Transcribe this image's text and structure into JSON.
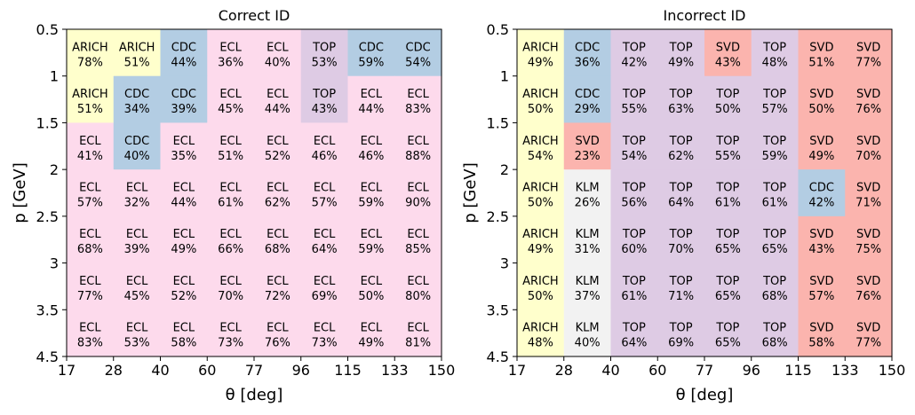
{
  "chart_data": [
    {
      "type": "heatmap",
      "title": "Correct ID",
      "xlabel": "θ [deg]",
      "ylabel": "p [GeV]",
      "x_edges": [
        "17",
        "28",
        "40",
        "60",
        "77",
        "96",
        "115",
        "133",
        "150"
      ],
      "y_edges": [
        "0.5",
        "1",
        "1.5",
        "2",
        "2.5",
        "3",
        "3.5",
        "4.5"
      ],
      "cells": [
        [
          [
            "ARICH",
            "78%"
          ],
          [
            "ARICH",
            "51%"
          ],
          [
            "CDC",
            "44%"
          ],
          [
            "ECL",
            "36%"
          ],
          [
            "ECL",
            "40%"
          ],
          [
            "TOP",
            "53%"
          ],
          [
            "CDC",
            "59%"
          ],
          [
            "CDC",
            "54%"
          ]
        ],
        [
          [
            "ARICH",
            "51%"
          ],
          [
            "CDC",
            "34%"
          ],
          [
            "CDC",
            "39%"
          ],
          [
            "ECL",
            "45%"
          ],
          [
            "ECL",
            "44%"
          ],
          [
            "TOP",
            "43%"
          ],
          [
            "ECL",
            "44%"
          ],
          [
            "ECL",
            "83%"
          ]
        ],
        [
          [
            "ECL",
            "41%"
          ],
          [
            "CDC",
            "40%"
          ],
          [
            "ECL",
            "35%"
          ],
          [
            "ECL",
            "51%"
          ],
          [
            "ECL",
            "52%"
          ],
          [
            "ECL",
            "46%"
          ],
          [
            "ECL",
            "46%"
          ],
          [
            "ECL",
            "88%"
          ]
        ],
        [
          [
            "ECL",
            "57%"
          ],
          [
            "ECL",
            "32%"
          ],
          [
            "ECL",
            "44%"
          ],
          [
            "ECL",
            "61%"
          ],
          [
            "ECL",
            "62%"
          ],
          [
            "ECL",
            "57%"
          ],
          [
            "ECL",
            "59%"
          ],
          [
            "ECL",
            "90%"
          ]
        ],
        [
          [
            "ECL",
            "68%"
          ],
          [
            "ECL",
            "39%"
          ],
          [
            "ECL",
            "49%"
          ],
          [
            "ECL",
            "66%"
          ],
          [
            "ECL",
            "68%"
          ],
          [
            "ECL",
            "64%"
          ],
          [
            "ECL",
            "59%"
          ],
          [
            "ECL",
            "85%"
          ]
        ],
        [
          [
            "ECL",
            "77%"
          ],
          [
            "ECL",
            "45%"
          ],
          [
            "ECL",
            "52%"
          ],
          [
            "ECL",
            "70%"
          ],
          [
            "ECL",
            "72%"
          ],
          [
            "ECL",
            "69%"
          ],
          [
            "ECL",
            "50%"
          ],
          [
            "ECL",
            "80%"
          ]
        ],
        [
          [
            "ECL",
            "83%"
          ],
          [
            "ECL",
            "53%"
          ],
          [
            "ECL",
            "58%"
          ],
          [
            "ECL",
            "73%"
          ],
          [
            "ECL",
            "76%"
          ],
          [
            "ECL",
            "73%"
          ],
          [
            "ECL",
            "49%"
          ],
          [
            "ECL",
            "81%"
          ]
        ]
      ]
    },
    {
      "type": "heatmap",
      "title": "Incorrect ID",
      "xlabel": "θ [deg]",
      "ylabel": "p [GeV]",
      "x_edges": [
        "17",
        "28",
        "40",
        "60",
        "77",
        "96",
        "115",
        "133",
        "150"
      ],
      "y_edges": [
        "0.5",
        "1",
        "1.5",
        "2",
        "2.5",
        "3",
        "3.5",
        "4.5"
      ],
      "cells": [
        [
          [
            "ARICH",
            "49%"
          ],
          [
            "CDC",
            "36%"
          ],
          [
            "TOP",
            "42%"
          ],
          [
            "TOP",
            "49%"
          ],
          [
            "SVD",
            "43%"
          ],
          [
            "TOP",
            "48%"
          ],
          [
            "SVD",
            "51%"
          ],
          [
            "SVD",
            "77%"
          ]
        ],
        [
          [
            "ARICH",
            "50%"
          ],
          [
            "CDC",
            "29%"
          ],
          [
            "TOP",
            "55%"
          ],
          [
            "TOP",
            "63%"
          ],
          [
            "TOP",
            "50%"
          ],
          [
            "TOP",
            "57%"
          ],
          [
            "SVD",
            "50%"
          ],
          [
            "SVD",
            "76%"
          ]
        ],
        [
          [
            "ARICH",
            "54%"
          ],
          [
            "SVD",
            "23%"
          ],
          [
            "TOP",
            "54%"
          ],
          [
            "TOP",
            "62%"
          ],
          [
            "TOP",
            "55%"
          ],
          [
            "TOP",
            "59%"
          ],
          [
            "SVD",
            "49%"
          ],
          [
            "SVD",
            "70%"
          ]
        ],
        [
          [
            "ARICH",
            "50%"
          ],
          [
            "KLM",
            "26%"
          ],
          [
            "TOP",
            "56%"
          ],
          [
            "TOP",
            "64%"
          ],
          [
            "TOP",
            "61%"
          ],
          [
            "TOP",
            "61%"
          ],
          [
            "CDC",
            "42%"
          ],
          [
            "SVD",
            "71%"
          ]
        ],
        [
          [
            "ARICH",
            "49%"
          ],
          [
            "KLM",
            "31%"
          ],
          [
            "TOP",
            "60%"
          ],
          [
            "TOP",
            "70%"
          ],
          [
            "TOP",
            "65%"
          ],
          [
            "TOP",
            "65%"
          ],
          [
            "SVD",
            "43%"
          ],
          [
            "SVD",
            "75%"
          ]
        ],
        [
          [
            "ARICH",
            "50%"
          ],
          [
            "KLM",
            "37%"
          ],
          [
            "TOP",
            "61%"
          ],
          [
            "TOP",
            "71%"
          ],
          [
            "TOP",
            "65%"
          ],
          [
            "TOP",
            "68%"
          ],
          [
            "SVD",
            "57%"
          ],
          [
            "SVD",
            "76%"
          ]
        ],
        [
          [
            "ARICH",
            "48%"
          ],
          [
            "KLM",
            "40%"
          ],
          [
            "TOP",
            "64%"
          ],
          [
            "TOP",
            "69%"
          ],
          [
            "TOP",
            "65%"
          ],
          [
            "TOP",
            "68%"
          ],
          [
            "SVD",
            "58%"
          ],
          [
            "SVD",
            "77%"
          ]
        ]
      ]
    }
  ],
  "colors": {
    "ARICH": "#ffffcc",
    "CDC": "#b3cde3",
    "ECL": "#fddaec",
    "TOP": "#decbe4",
    "SVD": "#fbb4ae",
    "KLM": "#f2f2f2"
  }
}
